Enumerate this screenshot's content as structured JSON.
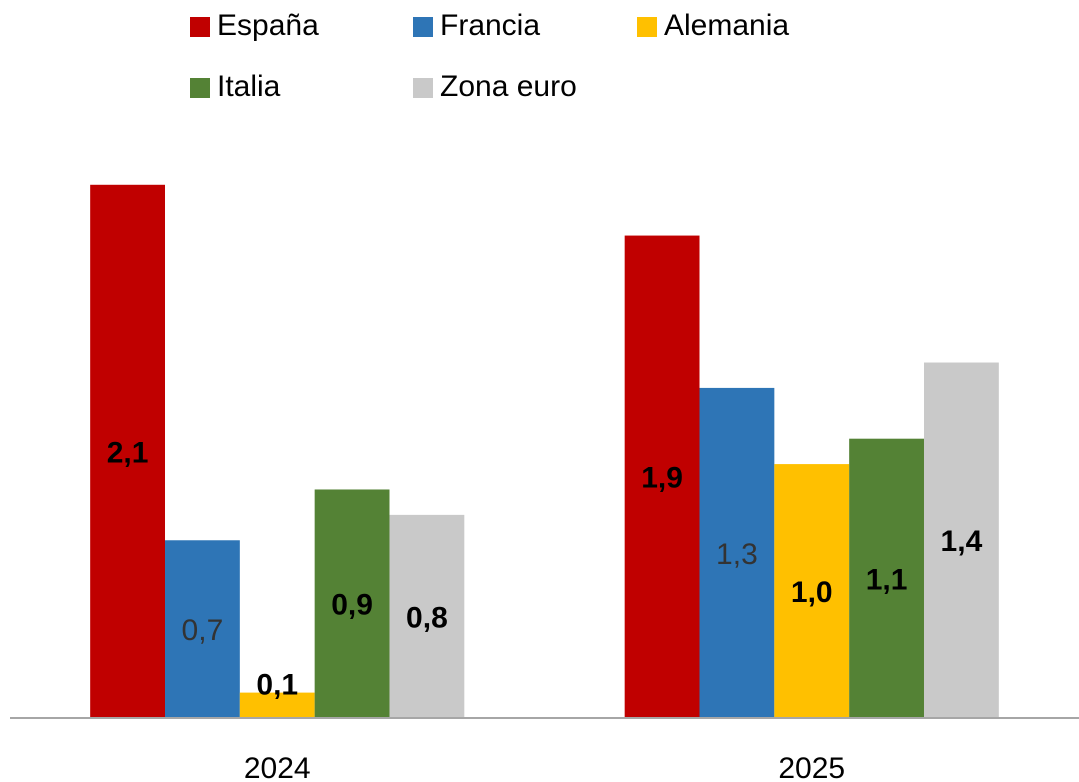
{
  "chart_data": {
    "type": "bar",
    "categories": [
      "2024",
      "2025"
    ],
    "series": [
      {
        "name": "España",
        "color": "#c00000",
        "values": [
          2.1,
          1.9
        ],
        "value_labels": [
          "2,1",
          "1,9"
        ]
      },
      {
        "name": "Francia",
        "color": "#2e75b6",
        "values": [
          0.7,
          1.3
        ],
        "value_labels": [
          "0,7",
          "1,3"
        ]
      },
      {
        "name": "Alemania",
        "color": "#ffc000",
        "values": [
          0.1,
          1.0
        ],
        "value_labels": [
          "0,1",
          "1,0"
        ]
      },
      {
        "name": "Italia",
        "color": "#548235",
        "values": [
          0.9,
          1.1
        ],
        "value_labels": [
          "0,9",
          "1,1"
        ]
      },
      {
        "name": "Zona euro",
        "color": "#c9c9c9",
        "values": [
          0.8,
          1.4
        ],
        "value_labels": [
          "0,8",
          "1,4"
        ]
      }
    ],
    "ylim": [
      0,
      2.3
    ],
    "legend": "top"
  }
}
